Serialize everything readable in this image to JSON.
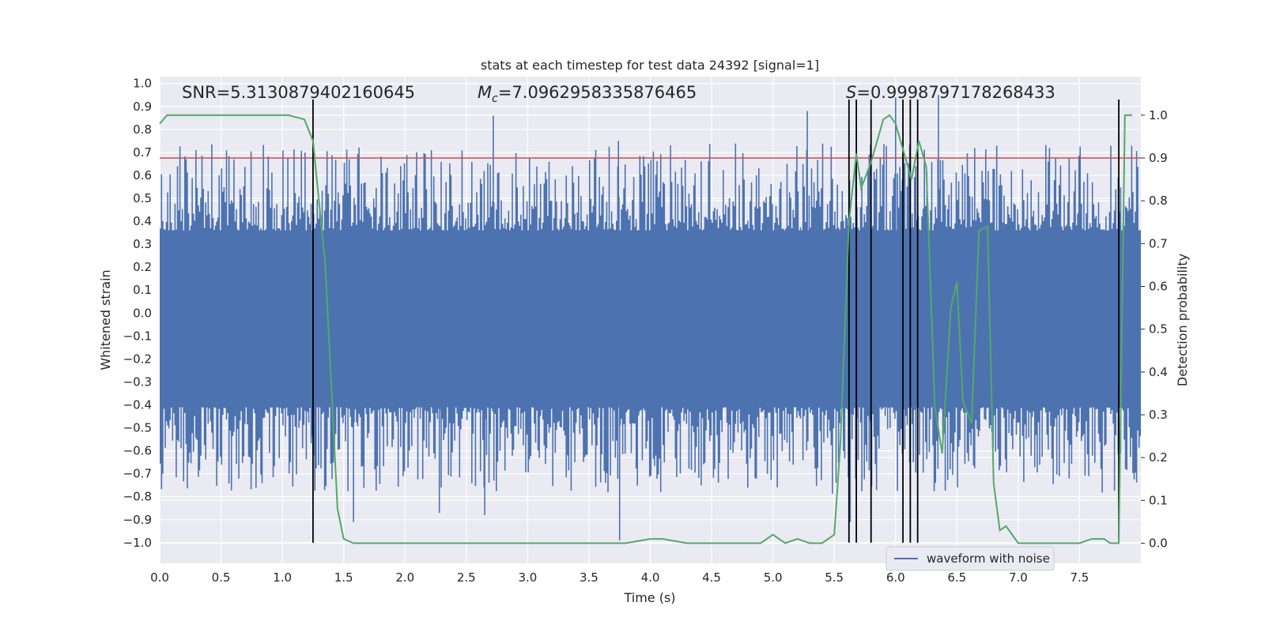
{
  "chart_data": {
    "type": "line",
    "title": "stats at each timestep for test data 24392 [signal=1]",
    "xlabel": "Time (s)",
    "ylabel": "Whitened strain",
    "y2label": "Detection probability",
    "xlim": [
      0.0,
      8.0
    ],
    "ylim": [
      -1.09,
      1.03
    ],
    "y2lim": [
      -0.047,
      1.09
    ],
    "x_ticks": [
      "0.0",
      "0.5",
      "1.0",
      "1.5",
      "2.0",
      "2.5",
      "3.0",
      "3.5",
      "4.0",
      "4.5",
      "5.0",
      "5.5",
      "6.0",
      "6.5",
      "7.0",
      "7.5"
    ],
    "x_tick_values": [
      0.0,
      0.5,
      1.0,
      1.5,
      2.0,
      2.5,
      3.0,
      3.5,
      4.0,
      4.5,
      5.0,
      5.5,
      6.0,
      6.5,
      7.0,
      7.5
    ],
    "y_ticks": [
      "1.0",
      "0.9",
      "0.8",
      "0.7",
      "0.6",
      "0.5",
      "0.4",
      "0.3",
      "0.2",
      "0.1",
      "0.0",
      "−0.1",
      "−0.2",
      "−0.3",
      "−0.4",
      "−0.5",
      "−0.6",
      "−0.7",
      "−0.8",
      "−0.9",
      "−1.0"
    ],
    "y_tick_values": [
      1.0,
      0.9,
      0.8,
      0.7,
      0.6,
      0.5,
      0.4,
      0.3,
      0.2,
      0.1,
      0.0,
      -0.1,
      -0.2,
      -0.3,
      -0.4,
      -0.5,
      -0.6,
      -0.7,
      -0.8,
      -0.9,
      -1.0
    ],
    "y2_ticks": [
      "1.0",
      "0.9",
      "0.8",
      "0.7",
      "0.6",
      "0.5",
      "0.4",
      "0.3",
      "0.2",
      "0.1",
      "0.0"
    ],
    "y2_tick_values": [
      1.0,
      0.9,
      0.8,
      0.7,
      0.6,
      0.5,
      0.4,
      0.3,
      0.2,
      0.1,
      0.0
    ],
    "annotations": {
      "snr": "SNR=5.3130879402160645",
      "mc_symbol": "M",
      "mc_sub": "c",
      "mc_value": "=7.0962958335876465",
      "s_symbol": "S",
      "s_value": "=0.9998797178268433"
    },
    "threshold_level": 0.9,
    "threshold_color": "#c44e52",
    "detection_lines_x": [
      1.25,
      5.62,
      5.68,
      5.8,
      6.06,
      6.12,
      6.18,
      7.82
    ],
    "detection_line_range": [
      -1.0,
      0.93
    ],
    "waveform": {
      "name": "waveform with noise",
      "color": "#4c72b0",
      "n_samples": 800,
      "band_low": -0.41,
      "band_high": 0.36,
      "notable_spikes": [
        {
          "x": 2.72,
          "y": 0.86
        },
        {
          "x": 3.74,
          "y": 0.75
        },
        {
          "x": 3.75,
          "y": -0.99
        },
        {
          "x": 1.58,
          "y": -0.91
        },
        {
          "x": 5.63,
          "y": -0.91
        },
        {
          "x": 5.28,
          "y": 0.88
        },
        {
          "x": 6.0,
          "y": 0.94
        },
        {
          "x": 6.35,
          "y": 0.95
        },
        {
          "x": 2.65,
          "y": -0.88
        },
        {
          "x": 2.28,
          "y": -0.87
        }
      ]
    },
    "detection_probability": {
      "name": "detection probability",
      "color": "#55a868",
      "x": [
        0.0,
        0.06,
        0.15,
        0.3,
        0.5,
        0.7,
        0.9,
        1.05,
        1.18,
        1.25,
        1.35,
        1.45,
        1.5,
        1.58,
        1.7,
        2.0,
        2.5,
        3.0,
        3.5,
        3.8,
        4.0,
        4.1,
        4.3,
        4.5,
        4.7,
        4.9,
        5.0,
        5.1,
        5.2,
        5.3,
        5.4,
        5.5,
        5.55,
        5.62,
        5.68,
        5.72,
        5.8,
        5.9,
        5.95,
        6.0,
        6.08,
        6.13,
        6.19,
        6.25,
        6.32,
        6.38,
        6.45,
        6.5,
        6.55,
        6.62,
        6.68,
        6.75,
        6.8,
        6.85,
        6.9,
        7.0,
        7.1,
        7.2,
        7.3,
        7.5,
        7.6,
        7.7,
        7.75,
        7.82,
        7.87,
        7.93
      ],
      "y": [
        0.98,
        1.0,
        1.0,
        1.0,
        1.0,
        1.0,
        1.0,
        1.0,
        0.99,
        0.94,
        0.65,
        0.08,
        0.01,
        0.0,
        0.0,
        0.0,
        0.0,
        0.0,
        0.0,
        0.0,
        0.01,
        0.01,
        0.0,
        0.0,
        0.0,
        0.0,
        0.02,
        0.0,
        0.01,
        0.0,
        0.0,
        0.02,
        0.23,
        0.75,
        0.91,
        0.83,
        0.89,
        0.99,
        1.0,
        0.98,
        0.9,
        0.85,
        0.94,
        0.88,
        0.32,
        0.21,
        0.55,
        0.61,
        0.33,
        0.28,
        0.73,
        0.74,
        0.14,
        0.03,
        0.04,
        0.0,
        0.0,
        0.0,
        0.0,
        0.0,
        0.01,
        0.01,
        0.0,
        0.0,
        1.0,
        1.0
      ]
    },
    "legend": {
      "entries": [
        "waveform with noise"
      ],
      "placement": "lower-right"
    }
  }
}
